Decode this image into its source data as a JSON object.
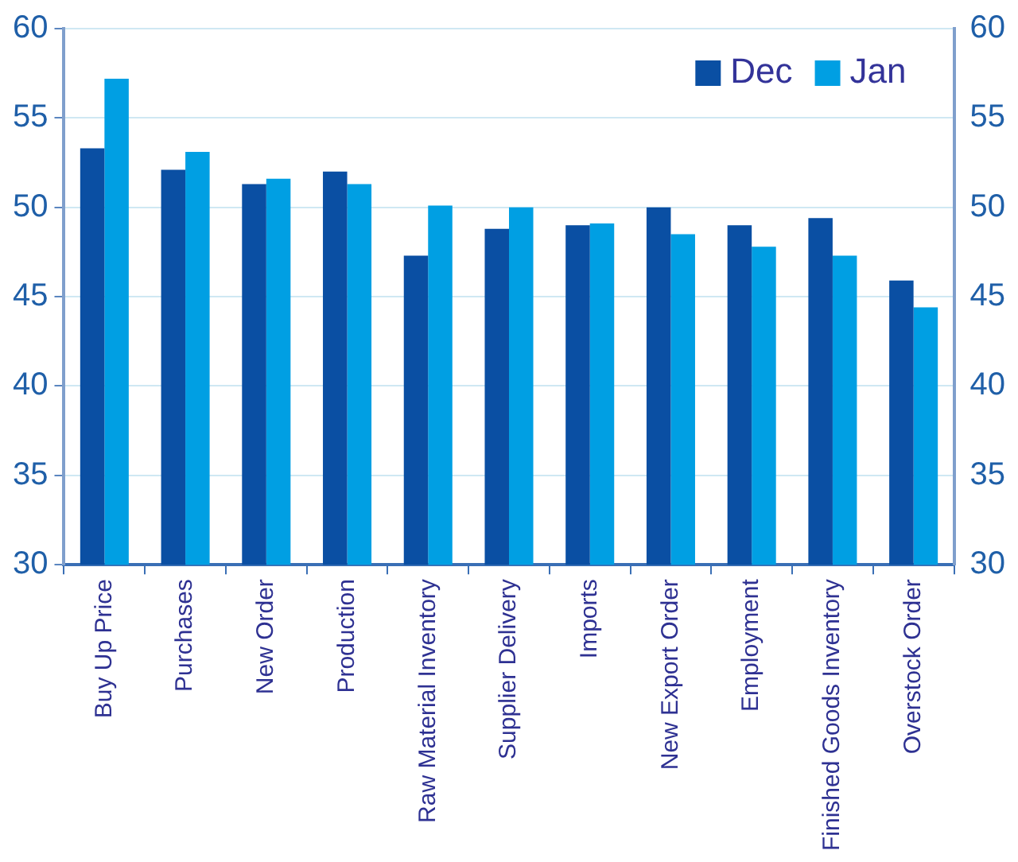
{
  "chart_data": {
    "type": "bar",
    "categories": [
      "Buy Up Price",
      "Purchases",
      "New Order",
      "Production",
      "Raw Material Inventory",
      "Supplier Delivery",
      "Imports",
      "New Export Order",
      "Employment",
      "Finished Goods Inventory",
      "Overstock Order"
    ],
    "series": [
      {
        "name": "Dec",
        "color": "#0a4fa3",
        "values": [
          53.3,
          52.1,
          51.3,
          52.0,
          47.3,
          48.8,
          49.0,
          50.0,
          49.0,
          49.4,
          45.9
        ]
      },
      {
        "name": "Jan",
        "color": "#009fe3",
        "values": [
          57.2,
          53.1,
          51.6,
          51.3,
          50.1,
          50.0,
          49.1,
          48.5,
          47.8,
          47.3,
          44.4
        ]
      }
    ],
    "ylim": [
      30,
      60
    ],
    "yticks": [
      30,
      35,
      40,
      45,
      50,
      55,
      60
    ],
    "y2lim": [
      30,
      60
    ],
    "y2ticks": [
      30,
      35,
      40,
      45,
      50,
      55,
      60
    ],
    "grid": "y",
    "legend": "top right"
  }
}
